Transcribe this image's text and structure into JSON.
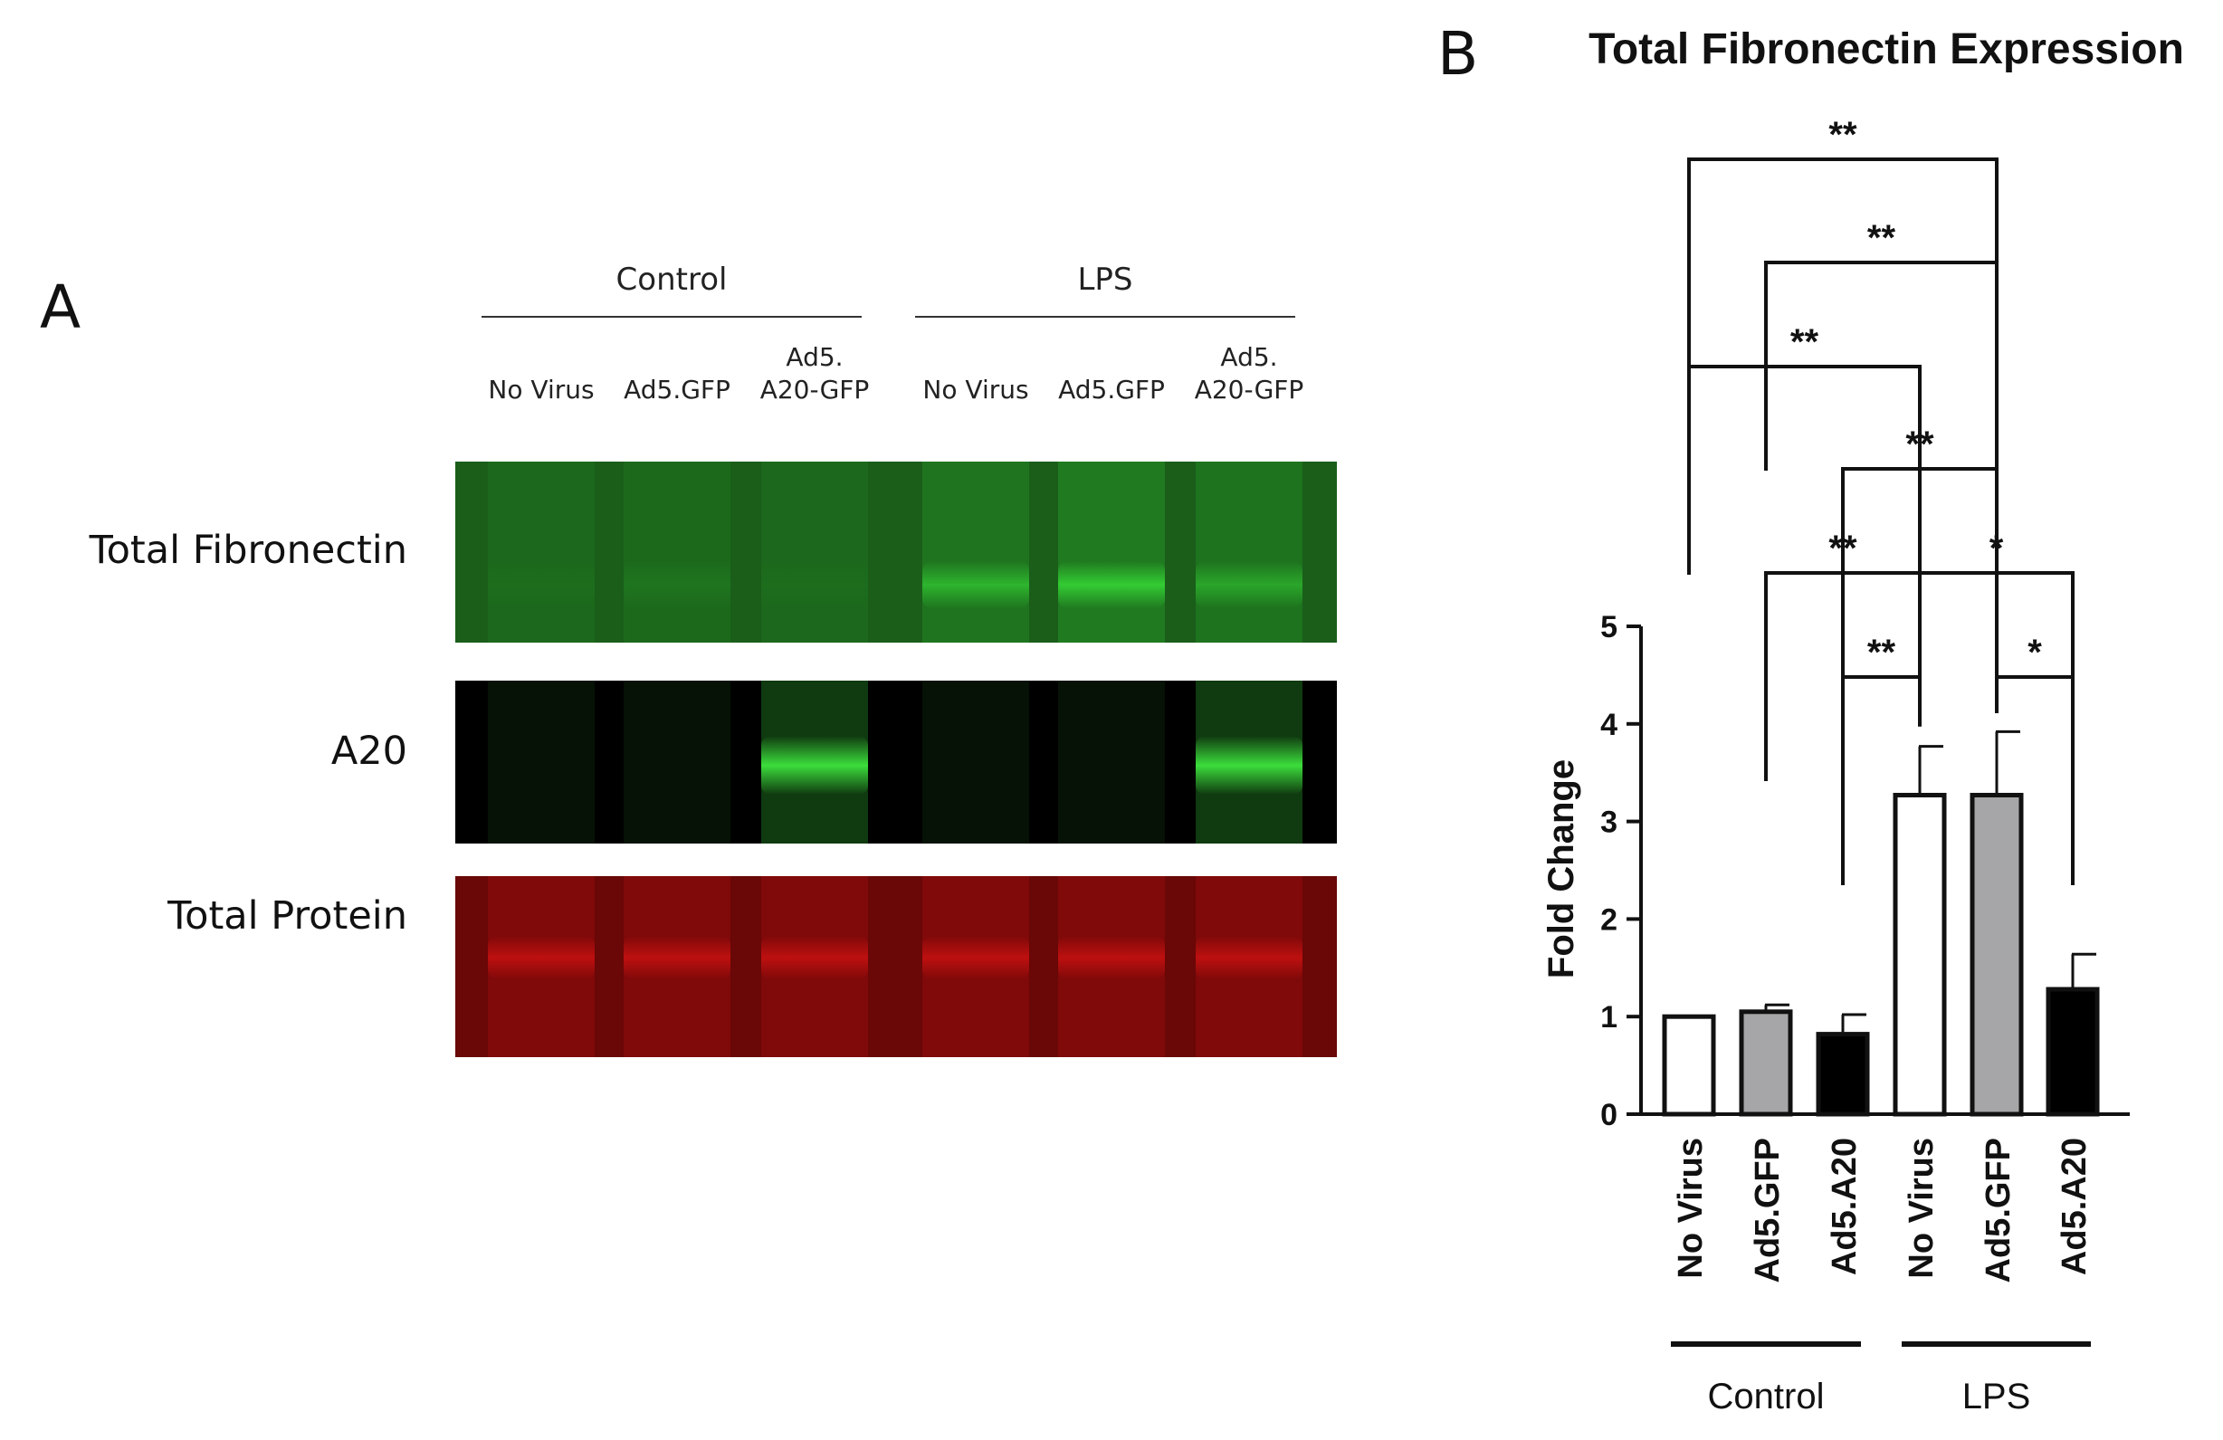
{
  "panels": {
    "a_label": "A",
    "b_label": "B"
  },
  "blot": {
    "groups": [
      {
        "label": "Control"
      },
      {
        "label": "LPS"
      }
    ],
    "lanes": [
      {
        "line1": "",
        "line2": "No Virus"
      },
      {
        "line1": "",
        "line2": "Ad5.GFP"
      },
      {
        "line1": "Ad5.",
        "line2": "A20-GFP"
      },
      {
        "line1": "",
        "line2": "No Virus"
      },
      {
        "line1": "",
        "line2": "Ad5.GFP"
      },
      {
        "line1": "Ad5.",
        "line2": "A20-GFP"
      }
    ],
    "rows": [
      {
        "label": "Total Fibronectin",
        "color": "#34d034",
        "background": "#1a5e1a",
        "intensities": [
          0.05,
          0.12,
          0.05,
          0.7,
          0.95,
          0.55
        ]
      },
      {
        "label": "A20",
        "color": "#3ee63e",
        "background": "#000000",
        "intensities": [
          0,
          0,
          0.95,
          0,
          0,
          0.95
        ]
      },
      {
        "label": "Total Protein",
        "color": "#d21212",
        "background": "#6a0707",
        "intensities": [
          0.75,
          0.75,
          0.75,
          0.75,
          0.75,
          0.75
        ]
      }
    ]
  },
  "chart_data": {
    "type": "bar",
    "title": "Total Fibronectin Expression",
    "ylabel": "Fold Change",
    "xlabel": "",
    "ylim": [
      0,
      5
    ],
    "yticks": [
      "0",
      "1",
      "2",
      "3",
      "4",
      "5"
    ],
    "categories": [
      "No Virus",
      "Ad5.GFP",
      "Ad5.A20",
      "No Virus",
      "Ad5.GFP",
      "Ad5.A20"
    ],
    "values": [
      1.0,
      1.05,
      0.82,
      3.27,
      3.27,
      1.28
    ],
    "errors": [
      0.0,
      0.07,
      0.2,
      0.5,
      0.65,
      0.36
    ],
    "fills": [
      "#ffffff",
      "#a6a6a8",
      "#000000",
      "#ffffff",
      "#a6a6a8",
      "#000000"
    ],
    "groups": [
      {
        "label": "Control",
        "from": 0,
        "to": 2
      },
      {
        "label": "LPS",
        "from": 3,
        "to": 5
      }
    ],
    "comparisons": [
      {
        "a": 0,
        "b": 4,
        "label": "**"
      },
      {
        "a": 1,
        "b": 4,
        "label": "**"
      },
      {
        "a": 0,
        "b": 3,
        "label": "**"
      },
      {
        "a": 2,
        "b": 4,
        "label": "**"
      },
      {
        "a": 1,
        "b": 3,
        "label": "**"
      },
      {
        "a": 3,
        "b": 5,
        "label": "*"
      },
      {
        "a": 2,
        "b": 3,
        "label": "**"
      },
      {
        "a": 4,
        "b": 5,
        "label": "*"
      }
    ]
  }
}
